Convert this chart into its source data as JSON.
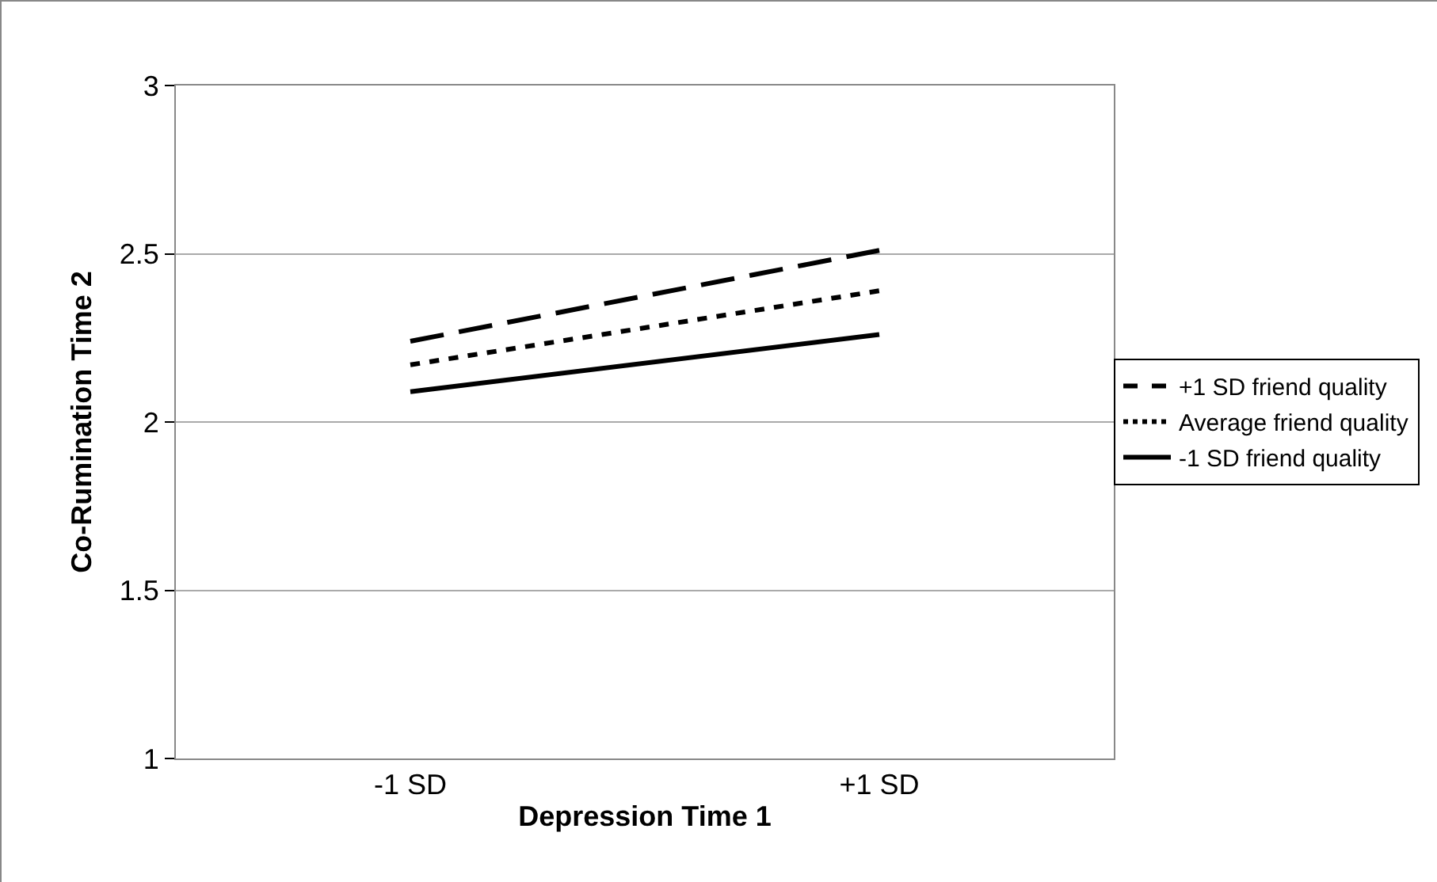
{
  "chart_data": {
    "type": "line",
    "xlabel": "Depression Time 1",
    "ylabel": "Co-Rumination Time 2",
    "categories": [
      "-1 SD",
      "+1 SD"
    ],
    "series": [
      {
        "name": "+1 SD friend quality",
        "color": "#000000",
        "values": [
          2.24,
          2.51
        ],
        "line_style": "dashed"
      },
      {
        "name": "Average friend quality",
        "color": "#000000",
        "values": [
          2.17,
          2.39
        ],
        "line_style": "dotted"
      },
      {
        "name": "-1 SD friend quality",
        "color": "#000000",
        "values": [
          2.09,
          2.26
        ],
        "line_style": "solid"
      }
    ],
    "ylim": [
      1,
      3
    ],
    "yticks": [
      1,
      1.5,
      2,
      2.5,
      3
    ],
    "grid": "y",
    "legend": "right",
    "marker": "none"
  }
}
